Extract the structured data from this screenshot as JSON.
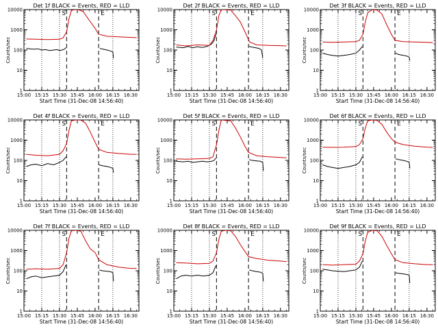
{
  "figure": {
    "common": {
      "xlabel": "Start Time (31-Dec-08 14:56:40)",
      "ylabel": "Counts/sec",
      "x_tick_labels": [
        "15:00",
        "15:15",
        "15:30",
        "15:45",
        "16:00",
        "16:15",
        "16:30"
      ],
      "x_tick_values_min": [
        0,
        15,
        30,
        45,
        60,
        75,
        90
      ],
      "y_tick_labels": [
        "1",
        "10",
        "100",
        "1000",
        "10000"
      ],
      "y_tick_values": [
        1,
        10,
        100,
        1000,
        10000
      ],
      "xlim_min": [
        0,
        97
      ],
      "ylim": [
        1,
        10000
      ],
      "y_scale": "log",
      "colors": {
        "events": "#000000",
        "lld": "#cc0000",
        "axis": "#000000"
      }
    }
  },
  "chart_data": [
    {
      "type": "line",
      "title": "Det 1f BLACK = Events, RED = LLD",
      "markers": {
        "start": 36,
        "end": 63,
        "start_label": "S",
        "end_label": "E",
        "dotted": [
          15,
          30,
          75
        ],
        "dashed": [
          36,
          63
        ]
      },
      "series": [
        {
          "name": "Events",
          "color": "#000000",
          "x": [
            2,
            8,
            12,
            15,
            18,
            22,
            25,
            28,
            30,
            32,
            34,
            35.5
          ],
          "y": [
            120,
            110,
            115,
            100,
            105,
            95,
            100,
            105,
            95,
            100,
            110,
            130
          ]
        },
        {
          "name": "Events",
          "color": "#000000",
          "x": [
            64,
            67,
            70,
            73,
            75,
            75.5
          ],
          "y": [
            120,
            110,
            100,
            90,
            80,
            40
          ]
        },
        {
          "name": "LLD",
          "color": "#cc0000",
          "x": [
            2,
            10,
            20,
            30,
            33,
            36,
            38,
            40,
            43,
            46,
            50,
            55,
            60,
            63,
            70,
            80,
            90,
            95
          ],
          "y": [
            350,
            340,
            330,
            340,
            400,
            800,
            3500,
            9000,
            10000,
            9800,
            8000,
            3000,
            1200,
            600,
            480,
            450,
            420,
            410
          ]
        }
      ]
    },
    {
      "type": "line",
      "title": "Det 2f BLACK = Events, RED = LLD",
      "markers": {
        "start": 36,
        "end": 63,
        "start_label": "S",
        "end_label": "E",
        "dotted": [
          15,
          30,
          75
        ],
        "dashed": [
          36,
          63
        ]
      },
      "series": [
        {
          "name": "Events",
          "color": "#000000",
          "x": [
            2,
            8,
            12,
            16,
            20,
            24,
            28,
            32,
            34,
            35.5
          ],
          "y": [
            140,
            130,
            150,
            130,
            145,
            135,
            150,
            200,
            300,
            600
          ]
        },
        {
          "name": "Events",
          "color": "#000000",
          "x": [
            63.5,
            66,
            69,
            72,
            74,
            75
          ],
          "y": [
            150,
            140,
            130,
            120,
            100,
            40
          ]
        },
        {
          "name": "LLD",
          "color": "#cc0000",
          "x": [
            2,
            10,
            20,
            30,
            33,
            36,
            38,
            40,
            44,
            48,
            52,
            56,
            60,
            64,
            70,
            80,
            90,
            95
          ],
          "y": [
            180,
            160,
            180,
            170,
            300,
            1000,
            5000,
            10000,
            9800,
            9500,
            5000,
            2500,
            800,
            250,
            180,
            170,
            165,
            160
          ]
        }
      ]
    },
    {
      "type": "line",
      "title": "Det 3f BLACK = Events, RED = LLD",
      "markers": {
        "start": 36,
        "end": 63,
        "start_label": "S",
        "end_label": "E",
        "dotted": [
          15,
          30,
          75
        ],
        "dashed": [
          36,
          63
        ]
      },
      "series": [
        {
          "name": "Events",
          "color": "#000000",
          "x": [
            2,
            6,
            10,
            15,
            20,
            25,
            30,
            33,
            35.5
          ],
          "y": [
            70,
            60,
            55,
            50,
            55,
            60,
            70,
            100,
            150
          ]
        },
        {
          "name": "Events",
          "color": "#000000",
          "x": [
            63.5,
            66,
            70,
            73,
            75,
            75.5
          ],
          "y": [
            70,
            60,
            55,
            50,
            45,
            30
          ]
        },
        {
          "name": "LLD",
          "color": "#cc0000",
          "x": [
            2,
            10,
            20,
            30,
            33,
            36,
            38,
            40,
            44,
            48,
            52,
            56,
            60,
            63,
            70,
            80,
            90,
            95
          ],
          "y": [
            250,
            240,
            250,
            260,
            300,
            600,
            2500,
            7000,
            10000,
            9500,
            6000,
            1800,
            600,
            300,
            260,
            250,
            240,
            230
          ]
        }
      ]
    },
    {
      "type": "line",
      "title": "Det 4f BLACK = Events, RED = LLD",
      "markers": {
        "start": 36,
        "end": 63,
        "start_label": "S",
        "end_label": "E",
        "dotted": [
          15,
          30,
          75
        ],
        "dashed": [
          36,
          63
        ]
      },
      "series": [
        {
          "name": "Events",
          "color": "#000000",
          "x": [
            2,
            6,
            10,
            15,
            20,
            25,
            30,
            33,
            35.5
          ],
          "y": [
            50,
            60,
            65,
            55,
            70,
            60,
            80,
            100,
            150
          ]
        },
        {
          "name": "Events",
          "color": "#000000",
          "x": [
            63.5,
            66,
            70,
            73,
            75,
            75.5
          ],
          "y": [
            60,
            55,
            50,
            45,
            40,
            25
          ]
        },
        {
          "name": "LLD",
          "color": "#cc0000",
          "x": [
            2,
            10,
            20,
            30,
            33,
            36,
            38,
            40,
            44,
            48,
            52,
            56,
            60,
            63,
            70,
            80,
            90,
            95
          ],
          "y": [
            200,
            180,
            170,
            200,
            300,
            700,
            3000,
            9000,
            10000,
            9800,
            7000,
            2500,
            800,
            350,
            250,
            220,
            200,
            200
          ]
        }
      ]
    },
    {
      "type": "line",
      "title": "Det 5f BLACK = Events, RED = LLD",
      "markers": {
        "start": 36,
        "end": 63,
        "start_label": "S",
        "end_label": "E",
        "dotted": [
          15,
          30,
          75
        ],
        "dashed": [
          36,
          63
        ]
      },
      "series": [
        {
          "name": "Events",
          "color": "#000000",
          "x": [
            2,
            8,
            12,
            16,
            20,
            24,
            28,
            32,
            34,
            35.5
          ],
          "y": [
            90,
            85,
            90,
            80,
            85,
            90,
            85,
            90,
            100,
            130
          ]
        },
        {
          "name": "Events",
          "color": "#000000",
          "x": [
            63.5,
            66,
            70,
            73,
            75,
            75.5
          ],
          "y": [
            110,
            100,
            95,
            90,
            80,
            30
          ]
        },
        {
          "name": "LLD",
          "color": "#cc0000",
          "x": [
            2,
            10,
            20,
            30,
            33,
            36,
            38,
            40,
            44,
            48,
            52,
            56,
            60,
            63,
            70,
            80,
            90,
            95
          ],
          "y": [
            120,
            115,
            120,
            125,
            150,
            600,
            3000,
            10000,
            9500,
            9000,
            4000,
            1500,
            500,
            250,
            170,
            150,
            140,
            135
          ]
        }
      ]
    },
    {
      "type": "line",
      "title": "Det 6f BLACK = Events, RED = LLD",
      "markers": {
        "start": 36,
        "end": 63,
        "start_label": "S",
        "end_label": "E",
        "dotted": [
          15,
          30,
          75
        ],
        "dashed": [
          36,
          63
        ]
      },
      "series": [
        {
          "name": "Events",
          "color": "#000000",
          "x": [
            2,
            6,
            10,
            15,
            20,
            25,
            30,
            33,
            35.5
          ],
          "y": [
            60,
            50,
            45,
            40,
            45,
            50,
            60,
            80,
            150
          ]
        },
        {
          "name": "Events",
          "color": "#000000",
          "x": [
            63.5,
            66,
            70,
            73,
            75,
            75.5
          ],
          "y": [
            120,
            110,
            100,
            90,
            80,
            40
          ]
        },
        {
          "name": "LLD",
          "color": "#cc0000",
          "x": [
            2,
            10,
            20,
            30,
            33,
            36,
            38,
            40,
            44,
            48,
            52,
            56,
            60,
            63,
            70,
            80,
            90,
            95
          ],
          "y": [
            450,
            440,
            450,
            480,
            600,
            1200,
            4000,
            9000,
            10000,
            9500,
            6000,
            2500,
            1200,
            800,
            600,
            500,
            450,
            440
          ]
        }
      ]
    },
    {
      "type": "line",
      "title": "Det 7f BLACK = Events, RED = LLD",
      "markers": {
        "start": 36,
        "end": 63,
        "start_label": "S",
        "end_label": "E",
        "dotted": [
          15,
          30,
          75
        ],
        "dashed": [
          36,
          63
        ]
      },
      "series": [
        {
          "name": "Events",
          "color": "#000000",
          "x": [
            2,
            6,
            10,
            15,
            20,
            25,
            30,
            33,
            35.5
          ],
          "y": [
            40,
            50,
            55,
            45,
            50,
            55,
            60,
            90,
            200
          ]
        },
        {
          "name": "Events",
          "color": "#000000",
          "x": [
            63.5,
            66,
            70,
            73,
            75,
            75.5
          ],
          "y": [
            110,
            100,
            95,
            90,
            80,
            30
          ]
        },
        {
          "name": "LLD",
          "color": "#cc0000",
          "x": [
            2,
            10,
            20,
            30,
            33,
            36,
            38,
            40,
            44,
            48,
            52,
            56,
            60,
            63,
            70,
            80,
            90,
            95
          ],
          "y": [
            120,
            125,
            120,
            130,
            200,
            800,
            4000,
            9500,
            10000,
            9000,
            3000,
            1200,
            800,
            350,
            200,
            150,
            130,
            130
          ]
        }
      ]
    },
    {
      "type": "line",
      "title": "Det 8f BLACK = Events, RED = LLD",
      "markers": {
        "start": 36,
        "end": 63,
        "start_label": "S",
        "end_label": "E",
        "dotted": [
          15,
          30,
          75
        ],
        "dashed": [
          36,
          63
        ]
      },
      "series": [
        {
          "name": "Events",
          "color": "#000000",
          "x": [
            2,
            6,
            10,
            15,
            20,
            25,
            30,
            33,
            35.5
          ],
          "y": [
            40,
            55,
            60,
            55,
            60,
            55,
            60,
            80,
            180
          ]
        },
        {
          "name": "Events",
          "color": "#000000",
          "x": [
            63.5,
            66,
            70,
            73,
            75,
            75.5
          ],
          "y": [
            110,
            100,
            90,
            85,
            75,
            30
          ]
        },
        {
          "name": "LLD",
          "color": "#cc0000",
          "x": [
            2,
            10,
            20,
            30,
            33,
            36,
            38,
            40,
            44,
            48,
            52,
            56,
            60,
            63,
            70,
            80,
            90,
            95
          ],
          "y": [
            250,
            240,
            220,
            230,
            300,
            800,
            3500,
            9000,
            10000,
            9500,
            5000,
            2000,
            900,
            500,
            400,
            330,
            300,
            280
          ]
        }
      ]
    },
    {
      "type": "line",
      "title": "Det 9f BLACK = Events, RED = LLD",
      "markers": {
        "start": 36,
        "end": 63,
        "start_label": "S",
        "end_label": "E",
        "dotted": [
          15,
          30,
          75
        ],
        "dashed": [
          36,
          63
        ]
      },
      "series": [
        {
          "name": "Events",
          "color": "#000000",
          "x": [
            2,
            6,
            10,
            15,
            20,
            25,
            30,
            33,
            35.5
          ],
          "y": [
            120,
            110,
            100,
            95,
            90,
            100,
            110,
            150,
            300
          ]
        },
        {
          "name": "Events",
          "color": "#000000",
          "x": [
            63.5,
            66,
            70,
            73,
            75,
            75.5
          ],
          "y": [
            80,
            75,
            70,
            65,
            60,
            25
          ]
        },
        {
          "name": "LLD",
          "color": "#cc0000",
          "x": [
            2,
            10,
            20,
            30,
            33,
            36,
            38,
            40,
            44,
            48,
            52,
            56,
            60,
            63,
            70,
            80,
            90,
            95
          ],
          "y": [
            200,
            190,
            200,
            210,
            300,
            700,
            3000,
            8000,
            10000,
            9500,
            5000,
            1800,
            700,
            350,
            250,
            220,
            200,
            200
          ]
        }
      ]
    }
  ]
}
